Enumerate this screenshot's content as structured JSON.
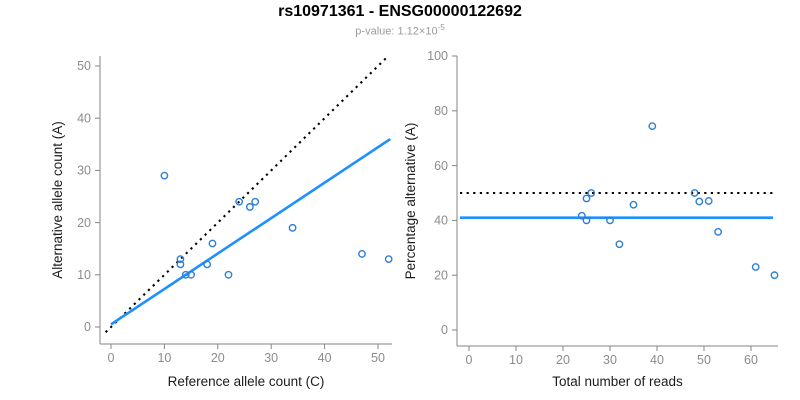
{
  "header": {
    "title": "rs10971361 - ENSG00000122692",
    "subtitle_prefix": "p-value: 1.12×10",
    "subtitle_exponent": "-5"
  },
  "colors": {
    "axis": "#858585",
    "tick_label": "#8c8c8c",
    "axis_title": "#1c1c1c",
    "title": "#000000",
    "subtitle": "#9b9b9b",
    "point_blue": "#2e7ed6",
    "line_blue": "#1e90ff",
    "dotted_black": "#000000",
    "background": "#ffffff"
  },
  "chart_data": [
    {
      "type": "scatter",
      "name": "allele-counts-scatter",
      "xlabel": "Reference allele count (C)",
      "ylabel": "Alternative allele count (A)",
      "xlim": [
        0,
        52
      ],
      "ylim": [
        0,
        52
      ],
      "xticks": [
        0,
        10,
        20,
        30,
        40,
        50
      ],
      "yticks": [
        0,
        10,
        20,
        30,
        40,
        50
      ],
      "grid": false,
      "point_color": "#2e7ed6",
      "points": [
        [
          10,
          29
        ],
        [
          24,
          24
        ],
        [
          27,
          24
        ],
        [
          26,
          23
        ],
        [
          34,
          19
        ],
        [
          19,
          16
        ],
        [
          13,
          13
        ],
        [
          13,
          12
        ],
        [
          18,
          12
        ],
        [
          14,
          10
        ],
        [
          15,
          10
        ],
        [
          22,
          10
        ],
        [
          47,
          14
        ],
        [
          52,
          13
        ]
      ],
      "lines": [
        {
          "name": "identity-line",
          "style": "dotted",
          "color": "#000000",
          "from": [
            -1,
            -1
          ],
          "to": [
            51.9,
            51.9
          ]
        },
        {
          "name": "fit-line",
          "style": "solid",
          "color": "#1e90ff",
          "from": [
            0,
            0.5
          ],
          "to": [
            52.3,
            36
          ]
        }
      ]
    },
    {
      "type": "scatter",
      "name": "percentage-vs-reads-scatter",
      "xlabel": "Total number of reads",
      "ylabel": "Percentage alternative (A)",
      "xlim": [
        0,
        66
      ],
      "ylim": [
        0,
        100
      ],
      "xticks": [
        0,
        10,
        20,
        30,
        40,
        50,
        60
      ],
      "yticks": [
        0,
        20,
        40,
        60,
        80,
        100
      ],
      "grid": false,
      "point_color": "#2e7ed6",
      "points": [
        [
          39,
          74.4
        ],
        [
          48,
          50
        ],
        [
          51,
          47.1
        ],
        [
          49,
          46.9
        ],
        [
          53,
          35.8
        ],
        [
          35,
          45.7
        ],
        [
          26,
          50
        ],
        [
          25,
          48
        ],
        [
          30,
          40
        ],
        [
          24,
          41.7
        ],
        [
          25,
          40
        ],
        [
          32,
          31.3
        ],
        [
          61,
          23
        ],
        [
          65,
          20
        ]
      ],
      "lines": [
        {
          "name": "expected-50pct-line",
          "style": "dotted",
          "color": "#000000",
          "y": 50
        },
        {
          "name": "mean-pct-line",
          "style": "solid",
          "color": "#1e90ff",
          "y": 41
        }
      ]
    }
  ]
}
